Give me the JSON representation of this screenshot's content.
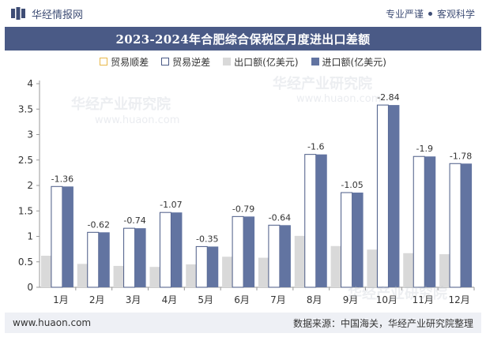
{
  "header": {
    "brand": "华经情报网",
    "tag_left": "专业严谨",
    "tag_right": "客观科学"
  },
  "footer": {
    "website": "www.huaon.com",
    "source": "数据来源：中国海关，华经产业研究院整理"
  },
  "watermark": {
    "text": "华经产业研究院",
    "url": "www.huaon.com"
  },
  "colors": {
    "title_bg": "#4a5a86",
    "import": "#6274a1",
    "export": "#d9d9d9",
    "surplus_border": "#e8b84a",
    "deficit_border": "#4a5a86"
  },
  "chart_data": {
    "type": "bar",
    "title": "2023-2024年合肥综合保税区月度进出口差额",
    "categories": [
      "1月",
      "2月",
      "3月",
      "4月",
      "5月",
      "6月",
      "7月",
      "8月",
      "9月",
      "10月",
      "11月",
      "12月"
    ],
    "ylim": [
      0,
      4
    ],
    "yticks": [
      "0",
      "0.5",
      "1",
      "1.5",
      "2",
      "2.5",
      "3",
      "3.5",
      "4"
    ],
    "legend_position": "top",
    "series": [
      {
        "name": "贸易顺差",
        "values": [
          0,
          0,
          0,
          0,
          0,
          0,
          0,
          0,
          0,
          0,
          0,
          0
        ]
      },
      {
        "name": "贸易逆差",
        "values": [
          1.36,
          0.62,
          0.74,
          1.07,
          0.35,
          0.79,
          0.64,
          1.6,
          1.05,
          2.84,
          1.9,
          1.78
        ]
      },
      {
        "name": "出口额(亿美元)",
        "values": [
          0.62,
          0.46,
          0.42,
          0.4,
          0.45,
          0.6,
          0.58,
          1.01,
          0.81,
          0.74,
          0.67,
          0.65
        ]
      },
      {
        "name": "进口额(亿美元)",
        "values": [
          1.98,
          1.08,
          1.16,
          1.47,
          0.8,
          1.39,
          1.22,
          2.61,
          1.86,
          3.58,
          2.57,
          2.43
        ]
      }
    ],
    "data_labels": [
      "-1.36",
      "-0.62",
      "-0.74",
      "-1.07",
      "-0.35",
      "-0.79",
      "-0.64",
      "-1.6",
      "-1.05",
      "-2.84",
      "-1.9",
      "-1.78"
    ]
  }
}
